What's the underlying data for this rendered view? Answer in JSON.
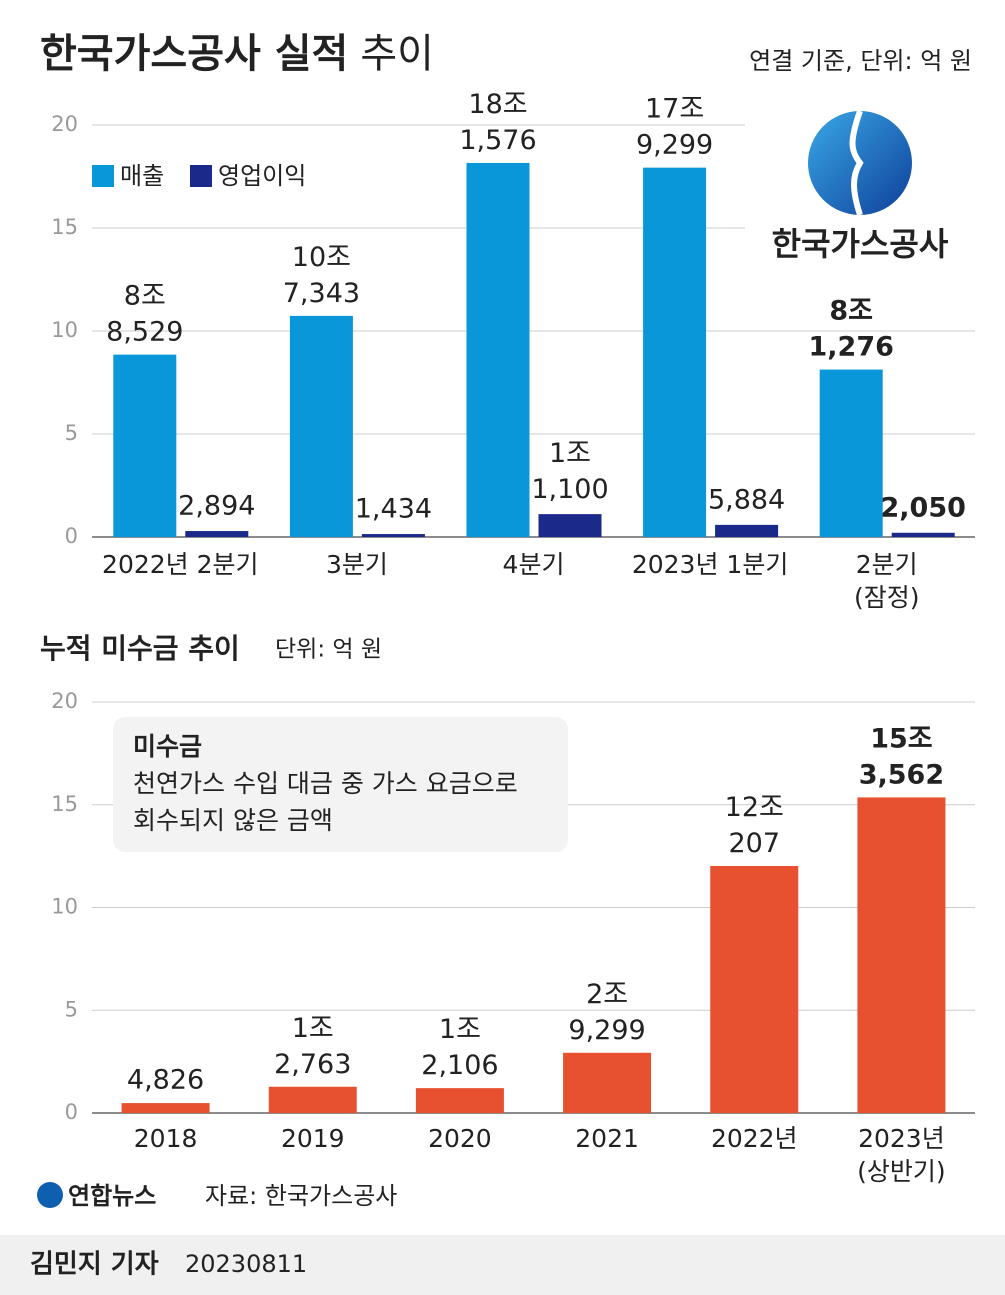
{
  "title": "한국가스공사 실적",
  "title_suffix": "추이",
  "unit_note": "연결 기준, 단위: 억 원",
  "logo_text": "한국가스공사",
  "chart_data": [
    {
      "type": "bar",
      "categories": [
        "2022년 2분기",
        "3분기",
        "4분기",
        "2023년 1분기",
        "2분기\n(잠정)"
      ],
      "series": [
        {
          "name": "매출",
          "color": "#0a97d9",
          "values": [
            8.8529,
            10.7343,
            18.1576,
            17.9299,
            8.1276
          ],
          "value_labels": [
            "8조\n8,529",
            "10조\n7,343",
            "18조\n1,576",
            "17조\n9,299",
            "8조\n1,276"
          ]
        },
        {
          "name": "영업이익",
          "color": "#1b2a8a",
          "values": [
            0.2894,
            0.1434,
            1.11,
            0.5884,
            0.205
          ],
          "value_labels": [
            "2,894",
            "1,434",
            "1조\n1,100",
            "5,884",
            "2,050"
          ]
        }
      ],
      "ylim": [
        0,
        20
      ],
      "yticks": [
        0,
        5,
        10,
        15,
        20
      ],
      "grid": true,
      "legend": "upper left"
    },
    {
      "type": "bar",
      "title": "누적 미수금 추이",
      "subtitle": "단위: 억 원",
      "note_title": "미수금",
      "note_text": "천연가스 수입 대금 중 가스 요금으로\n회수되지 않은 금액",
      "categories": [
        "2018",
        "2019",
        "2020",
        "2021",
        "2022년",
        "2023년\n(상반기)"
      ],
      "values": [
        0.4826,
        1.2763,
        1.2106,
        2.9299,
        12.0207,
        15.3562
      ],
      "value_labels": [
        "4,826",
        "1조\n2,763",
        "1조\n2,106",
        "2조\n9,299",
        "12조\n207",
        "15조\n3,562"
      ],
      "color": "#e8512f",
      "ylim": [
        0,
        20
      ],
      "yticks": [
        0,
        5,
        10,
        15,
        20
      ],
      "grid": true
    }
  ],
  "footer": {
    "brand": "연합뉴스",
    "source": "자료: 한국가스공사",
    "reporter": "김민지 기자",
    "date": "20230811"
  }
}
